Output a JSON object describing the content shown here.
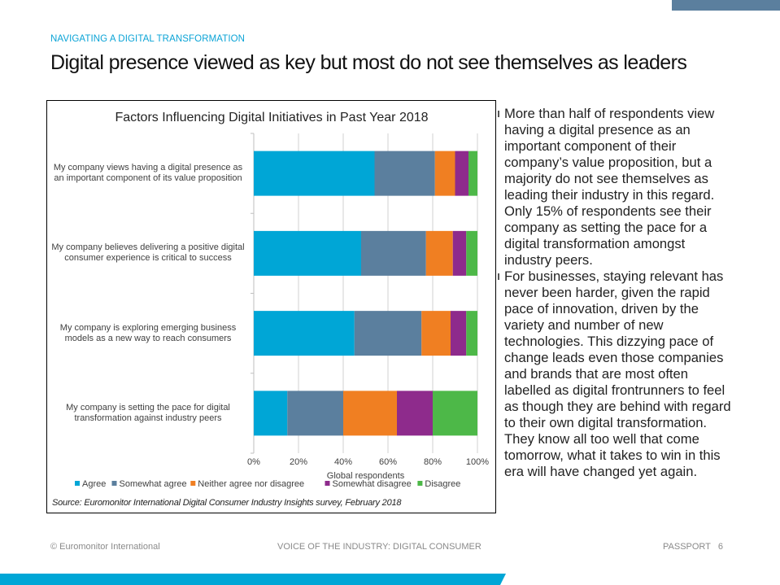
{
  "header": {
    "kicker": "NAVIGATING A DIGITAL TRANSFORMATION",
    "title": "Digital presence viewed as key but most do not see themselves as leaders"
  },
  "chart_data": {
    "type": "bar",
    "orientation": "horizontal",
    "stacked": true,
    "title": "Factors Influencing Digital Initiatives in Past Year 2018",
    "xlabel": "Global respondents",
    "ylabel": "",
    "xlim": [
      0,
      100
    ],
    "x_ticks": [
      "0%",
      "20%",
      "40%",
      "60%",
      "80%",
      "100%"
    ],
    "categories": [
      "My company views having a digital presence as an important component of its value proposition",
      "My company believes delivering a positive digital consumer experience is critical to success",
      "My company is exploring emerging business models as a new way to reach consumers",
      "My company is setting the pace for digital transformation against industry peers"
    ],
    "series": [
      {
        "name": "Agree",
        "color": "#00a6d6",
        "values": [
          54,
          48,
          45,
          15
        ]
      },
      {
        "name": "Somewhat agree",
        "color": "#5b7f9e",
        "values": [
          27,
          29,
          30,
          25
        ]
      },
      {
        "name": "Neither agree nor disagree",
        "color": "#f07f22",
        "values": [
          9,
          12,
          13,
          24
        ]
      },
      {
        "name": "Somewhat disagree",
        "color": "#8e2b8c",
        "values": [
          6,
          6,
          7,
          16
        ]
      },
      {
        "name": "Disagree",
        "color": "#4db848",
        "values": [
          4,
          5,
          5,
          20
        ]
      }
    ],
    "legend_position": "bottom",
    "grid": true,
    "source": "Source: Euromonitor International Digital Consumer Industry Insights survey, February 2018"
  },
  "bullets": [
    "More than half of respondents view having a digital presence as an important component of their company’s value proposition, but a majority do not see themselves as leading their industry in this regard. Only 15% of respondents see their company as setting the pace for a digital transformation amongst industry peers.",
    "For businesses, staying relevant has never been harder, given the rapid pace of innovation, driven by the variety and number of new technologies. This dizzying pace of change leads even those companies and brands that are most often labelled as digital frontrunners to feel as though they are behind with regard to their own digital transformation. They know all too well that come tomorrow, what it takes to win in this era will have changed yet again."
  ],
  "footer": {
    "left": "© Euromonitor International",
    "center": "VOICE OF THE INDUSTRY: DIGITAL CONSUMER",
    "right": "PASSPORT   6"
  },
  "colors": {
    "accent": "#00a6d6",
    "band_dark": "#5b7f9e"
  }
}
